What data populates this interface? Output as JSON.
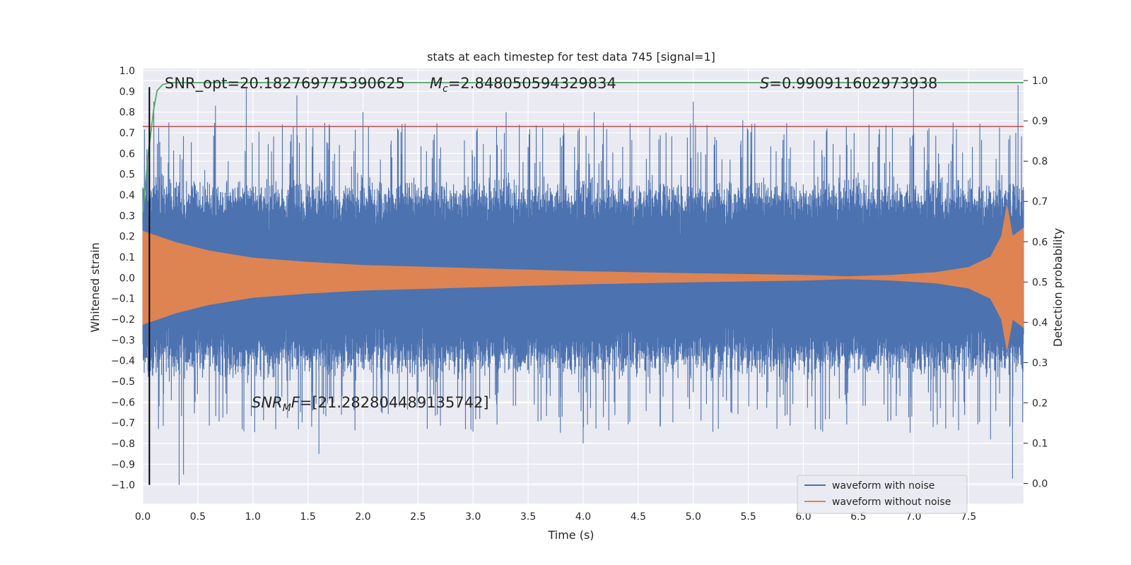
{
  "chart_data": {
    "type": "line",
    "title": "stats at each timestep for test data 745 [signal=1]",
    "xlabel": "Time (s)",
    "ylabel": "Whitened strain",
    "y2label": "Detection probability",
    "xlim": [
      0.0,
      8.0
    ],
    "ylim": [
      -1.09,
      1.01
    ],
    "y2lim": [
      -0.05,
      1.03
    ],
    "xticks": [
      "0.0",
      "0.5",
      "1.0",
      "1.5",
      "2.0",
      "2.5",
      "3.0",
      "3.5",
      "4.0",
      "4.5",
      "5.0",
      "5.5",
      "6.0",
      "6.5",
      "7.0",
      "7.5"
    ],
    "yticks": [
      "1.0",
      "0.9",
      "0.8",
      "0.7",
      "0.6",
      "0.5",
      "0.4",
      "0.3",
      "0.2",
      "0.1",
      "0.0",
      "−0.1",
      "−0.2",
      "−0.3",
      "−0.4",
      "−0.5",
      "−0.6",
      "−0.7",
      "−0.8",
      "−0.9",
      "−1.0"
    ],
    "y2ticks": [
      "1.0",
      "0.9",
      "0.8",
      "0.7",
      "0.6",
      "0.5",
      "0.4",
      "0.3",
      "0.2",
      "0.1",
      "0.0"
    ],
    "grid": true,
    "legend_position": "lower right",
    "annotations": {
      "snr_opt": "SNR_opt=20.182769775390625",
      "mc": "=2.848050594329834",
      "s": "=0.990911602973938",
      "snr_mf": "=[21.282804489135742]"
    },
    "series": [
      {
        "name": "waveform with noise",
        "color": "#4c72b0",
        "description_values": "noisy whitened strain, roughly symmetric, typical amplitude 0.3-0.6, extremes about +0.93 and -1.0",
        "peaks": [
          {
            "x": 0.07,
            "y": -0.45
          },
          {
            "x": 0.1,
            "y": 0.85
          },
          {
            "x": 0.33,
            "y": -1.0
          },
          {
            "x": 0.37,
            "y": -0.95
          },
          {
            "x": 0.66,
            "y": 0.83
          },
          {
            "x": 0.94,
            "y": 0.92
          },
          {
            "x": 1.4,
            "y": 0.88
          },
          {
            "x": 1.6,
            "y": -0.85
          },
          {
            "x": 2.0,
            "y": 0.8
          },
          {
            "x": 3.3,
            "y": 0.8
          },
          {
            "x": 4.0,
            "y": -0.8
          },
          {
            "x": 4.1,
            "y": 0.8
          },
          {
            "x": 5.0,
            "y": 0.85
          },
          {
            "x": 5.45,
            "y": 0.76
          },
          {
            "x": 7.0,
            "y": 0.92
          },
          {
            "x": 7.7,
            "y": -0.78
          },
          {
            "x": 7.9,
            "y": -0.97
          },
          {
            "x": 7.95,
            "y": 0.93
          }
        ]
      },
      {
        "name": "waveform without noise",
        "color": "#dd8452",
        "envelope": [
          {
            "x": 0.0,
            "y": 0.225
          },
          {
            "x": 0.3,
            "y": 0.17
          },
          {
            "x": 0.6,
            "y": 0.13
          },
          {
            "x": 1.0,
            "y": 0.095
          },
          {
            "x": 1.5,
            "y": 0.075
          },
          {
            "x": 2.0,
            "y": 0.06
          },
          {
            "x": 3.0,
            "y": 0.045
          },
          {
            "x": 4.0,
            "y": 0.03
          },
          {
            "x": 5.0,
            "y": 0.02
          },
          {
            "x": 6.0,
            "y": 0.012
          },
          {
            "x": 6.4,
            "y": 0.005
          },
          {
            "x": 6.8,
            "y": 0.012
          },
          {
            "x": 7.2,
            "y": 0.025
          },
          {
            "x": 7.5,
            "y": 0.05
          },
          {
            "x": 7.7,
            "y": 0.1
          },
          {
            "x": 7.8,
            "y": 0.2
          },
          {
            "x": 7.85,
            "y": 0.35
          },
          {
            "x": 7.9,
            "y": 0.2
          },
          {
            "x": 8.0,
            "y": 0.24
          }
        ]
      },
      {
        "name": "",
        "color": "#55a868",
        "axis": "y2",
        "values": [
          {
            "x": 0.0,
            "y": 0.67
          },
          {
            "x": 0.05,
            "y": 0.82
          },
          {
            "x": 0.1,
            "y": 0.93
          },
          {
            "x": 0.13,
            "y": 0.975
          },
          {
            "x": 0.18,
            "y": 0.99
          },
          {
            "x": 0.25,
            "y": 0.995
          },
          {
            "x": 8.0,
            "y": 0.995
          }
        ]
      },
      {
        "name": "",
        "color": "#c44e52",
        "axis": "y",
        "values": [
          {
            "x": 0.0,
            "y": 0.73
          },
          {
            "x": 8.0,
            "y": 0.73
          }
        ]
      }
    ],
    "vline": {
      "x": 0.06,
      "y_from": -1.0,
      "y_to": 0.92,
      "color": "#000000"
    }
  }
}
